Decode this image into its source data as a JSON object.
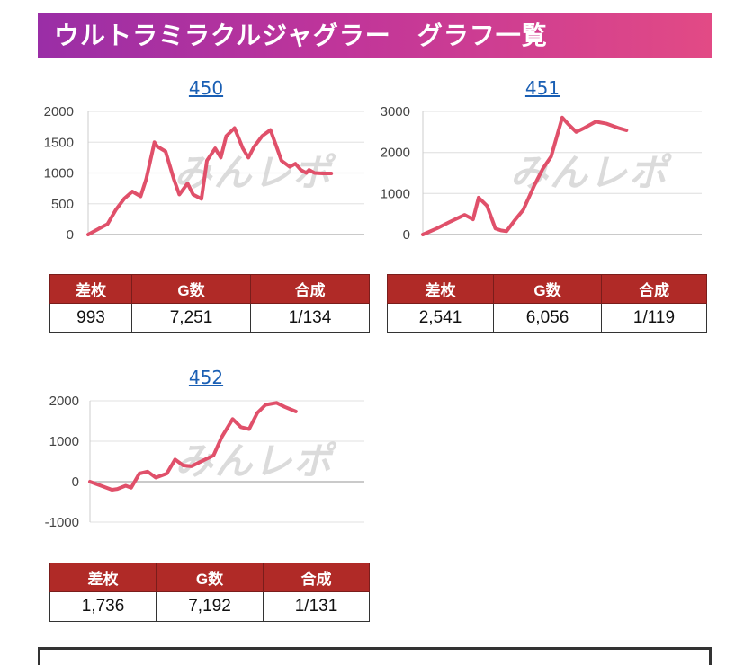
{
  "header": {
    "title": "ウルトラミラクルジャグラー　グラフ一覧"
  },
  "watermark": "みんレポ",
  "colors": {
    "line": "#e0506a",
    "table_header": "#b02a27"
  },
  "stats_headers": {
    "diff": "差枚",
    "games": "G数",
    "ratio": "合成"
  },
  "machines": [
    {
      "number": "450",
      "diff": "993",
      "games": "7,251",
      "ratio": "1/134"
    },
    {
      "number": "451",
      "diff": "2,541",
      "games": "6,056",
      "ratio": "1/119"
    },
    {
      "number": "452",
      "diff": "1,736",
      "games": "7,192",
      "ratio": "1/131"
    }
  ],
  "chart_data": [
    {
      "type": "line",
      "title": "450",
      "xlabel": "",
      "ylabel": "",
      "ylim": [
        0,
        2000
      ],
      "yticks": [
        "0",
        "500",
        "1000",
        "1500",
        "2000"
      ],
      "x": [
        0,
        0.04,
        0.07,
        0.1,
        0.13,
        0.16,
        0.19,
        0.21,
        0.24,
        0.25,
        0.28,
        0.31,
        0.33,
        0.36,
        0.38,
        0.41,
        0.43,
        0.46,
        0.48,
        0.5,
        0.53,
        0.56,
        0.58,
        0.6,
        0.63,
        0.66,
        0.68,
        0.7,
        0.73,
        0.75,
        0.77,
        0.79,
        0.8,
        0.82,
        0.85,
        0.88
      ],
      "series": [
        {
          "name": "差枚",
          "values": [
            0,
            100,
            170,
            400,
            580,
            700,
            620,
            900,
            1500,
            1430,
            1350,
            900,
            650,
            830,
            650,
            580,
            1200,
            1400,
            1250,
            1600,
            1730,
            1400,
            1250,
            1420,
            1600,
            1700,
            1450,
            1200,
            1100,
            1150,
            1050,
            1000,
            1050,
            1000,
            993,
            993
          ]
        }
      ]
    },
    {
      "type": "line",
      "title": "451",
      "xlabel": "",
      "ylabel": "",
      "ylim": [
        0,
        3000
      ],
      "yticks": [
        "0",
        "1000",
        "2000",
        "3000"
      ],
      "x": [
        0,
        0.05,
        0.1,
        0.15,
        0.18,
        0.2,
        0.23,
        0.26,
        0.28,
        0.3,
        0.33,
        0.36,
        0.4,
        0.43,
        0.46,
        0.5,
        0.52,
        0.55,
        0.58,
        0.62,
        0.66,
        0.7,
        0.73
      ],
      "series": [
        {
          "name": "差枚",
          "values": [
            0,
            150,
            320,
            480,
            370,
            900,
            700,
            150,
            100,
            80,
            350,
            600,
            1200,
            1600,
            1900,
            2850,
            2700,
            2500,
            2600,
            2750,
            2700,
            2600,
            2541
          ]
        }
      ]
    },
    {
      "type": "line",
      "title": "452",
      "xlabel": "",
      "ylabel": "",
      "ylim": [
        -1000,
        2000
      ],
      "yticks": [
        "-1000",
        "0",
        "1000",
        "2000"
      ],
      "x": [
        0,
        0.04,
        0.08,
        0.1,
        0.13,
        0.15,
        0.18,
        0.21,
        0.24,
        0.28,
        0.31,
        0.34,
        0.37,
        0.39,
        0.42,
        0.45,
        0.48,
        0.52,
        0.55,
        0.58,
        0.61,
        0.64,
        0.68,
        0.71,
        0.75
      ],
      "series": [
        {
          "name": "差枚",
          "values": [
            0,
            -100,
            -200,
            -180,
            -100,
            -150,
            200,
            250,
            100,
            200,
            550,
            400,
            380,
            450,
            550,
            650,
            1100,
            1550,
            1350,
            1300,
            1700,
            1900,
            1950,
            1850,
            1736
          ]
        }
      ]
    }
  ]
}
